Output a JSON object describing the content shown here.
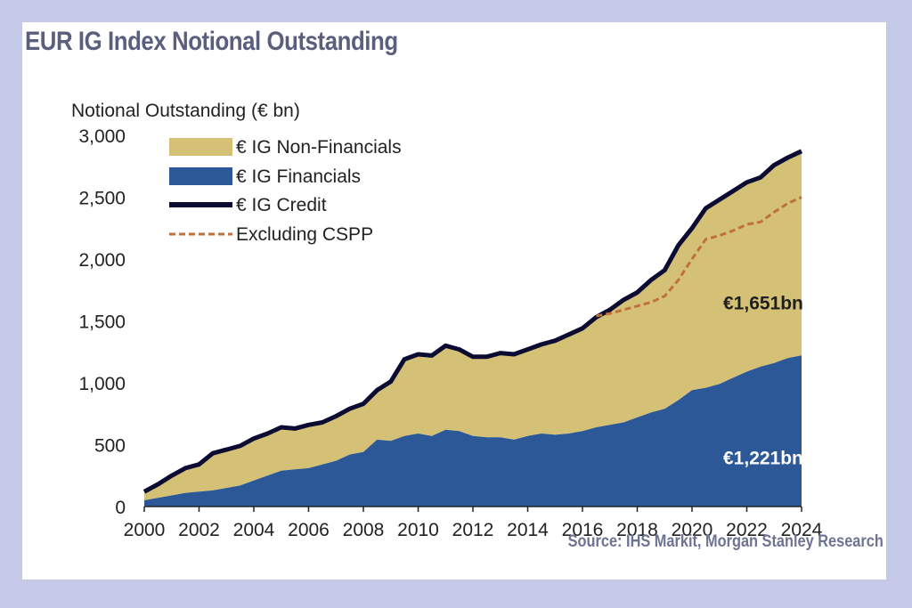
{
  "title": "EUR IG Index Notional Outstanding",
  "source": "Source: IHS Markit, Morgan Stanley Research",
  "colors": {
    "non_financials": "#d5c176",
    "financials": "#2d5897",
    "credit": "#0c0c33",
    "excluding_cspp": "#c0703b",
    "frame": "#c3c9e6"
  },
  "chart_data": {
    "type": "area",
    "title": "EUR IG Index Notional Outstanding",
    "ylabel": "Notional Outstanding (€ bn)",
    "xlabel": "",
    "xlim": [
      2000,
      2024
    ],
    "ylim": [
      0,
      3000
    ],
    "x_ticks": [
      "2000",
      "2002",
      "2004",
      "2006",
      "2008",
      "2010",
      "2012",
      "2014",
      "2016",
      "2018",
      "2020",
      "2022",
      "2024"
    ],
    "y_ticks": [
      "0",
      "500",
      "1,000",
      "1,500",
      "2,000",
      "2,500",
      "3,000"
    ],
    "legend_position": "top-left",
    "x": [
      2000,
      2000.5,
      2001,
      2001.5,
      2002,
      2002.5,
      2003,
      2003.5,
      2004,
      2004.5,
      2005,
      2005.5,
      2006,
      2006.5,
      2007,
      2007.5,
      2008,
      2008.5,
      2009,
      2009.5,
      2010,
      2010.5,
      2011,
      2011.5,
      2012,
      2012.5,
      2013,
      2013.5,
      2014,
      2014.5,
      2015,
      2015.5,
      2016,
      2016.5,
      2017,
      2017.5,
      2018,
      2018.5,
      2019,
      2019.5,
      2020,
      2020.5,
      2021,
      2021.5,
      2022,
      2022.5,
      2023,
      2023.5,
      2024
    ],
    "series": [
      {
        "name": "€ IG Non-Financials",
        "kind": "area",
        "values": [
          70,
          110,
          160,
          200,
          220,
          300,
          310,
          320,
          340,
          340,
          350,
          330,
          350,
          340,
          360,
          370,
          390,
          400,
          480,
          620,
          640,
          650,
          680,
          660,
          640,
          650,
          680,
          690,
          700,
          720,
          760,
          800,
          830,
          890,
          930,
          990,
          1010,
          1070,
          1120,
          1250,
          1310,
          1450,
          1490,
          1510,
          1530,
          1530,
          1600,
          1620,
          1651
        ]
      },
      {
        "name": "€ IG Financials",
        "kind": "area",
        "values": [
          50,
          70,
          90,
          110,
          120,
          130,
          150,
          170,
          210,
          250,
          290,
          300,
          310,
          340,
          370,
          420,
          440,
          540,
          530,
          570,
          590,
          570,
          620,
          610,
          570,
          560,
          560,
          540,
          570,
          590,
          580,
          590,
          610,
          640,
          660,
          680,
          720,
          760,
          790,
          860,
          940,
          960,
          990,
          1040,
          1090,
          1130,
          1160,
          1200,
          1221
        ]
      },
      {
        "name": "€ IG Credit",
        "kind": "line",
        "values": [
          120,
          180,
          250,
          310,
          340,
          430,
          460,
          490,
          550,
          590,
          640,
          630,
          660,
          680,
          730,
          790,
          830,
          940,
          1010,
          1190,
          1230,
          1220,
          1300,
          1270,
          1210,
          1210,
          1240,
          1230,
          1270,
          1310,
          1340,
          1390,
          1440,
          1530,
          1590,
          1670,
          1730,
          1830,
          1910,
          2110,
          2250,
          2410,
          2480,
          2550,
          2620,
          2660,
          2760,
          2820,
          2872
        ]
      },
      {
        "name": "Excluding CSPP",
        "kind": "dashed-line",
        "x": [
          2016.5,
          2017,
          2017.5,
          2018,
          2018.5,
          2019,
          2019.5,
          2020,
          2020.5,
          2021,
          2021.5,
          2022,
          2022.5,
          2023,
          2023.5,
          2024
        ],
        "values": [
          1540,
          1560,
          1590,
          1620,
          1650,
          1700,
          1830,
          2000,
          2160,
          2190,
          2230,
          2280,
          2300,
          2380,
          2450,
          2500
        ]
      }
    ],
    "annotations": [
      {
        "text": "€1,651bn",
        "series": "€ IG Non-Financials",
        "x": 2022.6,
        "y": 1650
      },
      {
        "text": "€1,221bn",
        "series": "€ IG Financials",
        "x": 2022.6,
        "y": 400
      }
    ]
  }
}
